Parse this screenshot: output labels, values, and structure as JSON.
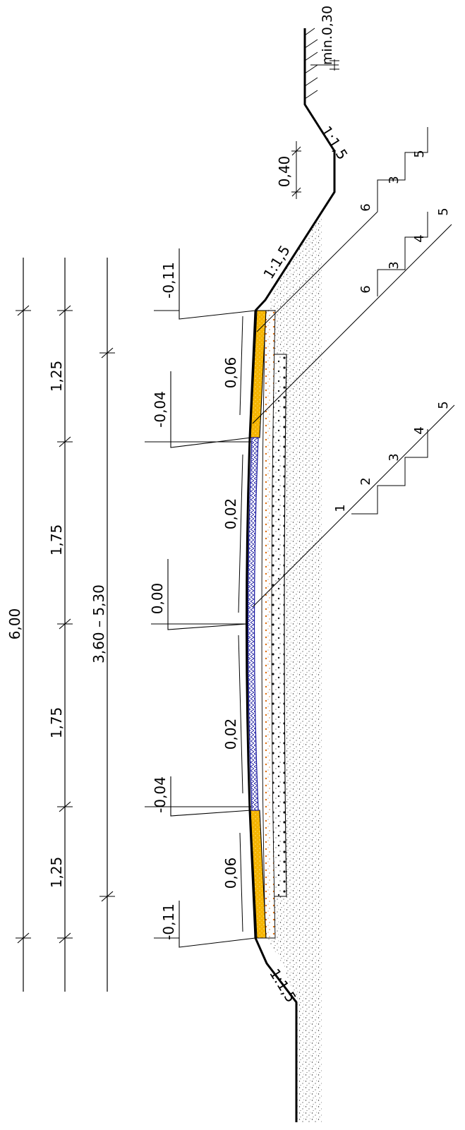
{
  "dimensions": {
    "total_width": "6,00",
    "shoulder_left": "1,25",
    "lane_left": "1,75",
    "lane_right": "1,75",
    "shoulder_right": "1,25",
    "paved_width": "3,60 – 5,30"
  },
  "elevations": {
    "top_edge": "-0,11",
    "top_shoulder_paved": "-0,04",
    "center": "0,00",
    "bottom_shoulder_paved": "-0,04",
    "bottom_edge": "-0,11"
  },
  "slopes": {
    "top_shoulder": "0,06",
    "top_lane": "0,02",
    "bottom_lane": "0,02",
    "bottom_shoulder": "0,06",
    "embankment_top": "1:1,5",
    "ditch": "1:1,5",
    "embankment_bottom": "1:1,5"
  },
  "ditch": {
    "depth": "0,40",
    "min_label": "min.0,30"
  },
  "layer_callouts": {
    "group_top": [
      "6",
      "3",
      "5"
    ],
    "group_mid": [
      "6",
      "3",
      "4",
      "5"
    ],
    "group_bottom": [
      "1",
      "2",
      "3",
      "4",
      "5"
    ]
  },
  "colors": {
    "shoulder_fill": "#f5b400",
    "asphalt_outline": "#1a1aa0",
    "aggregate_orange": "#e07010",
    "line": "#000000"
  }
}
